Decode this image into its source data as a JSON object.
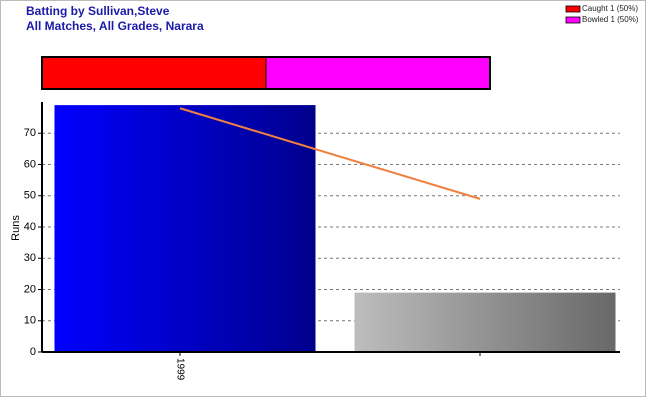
{
  "chart_data": [
    {
      "type": "stacked-hbar",
      "title": "Batting by Sullivan,Steve",
      "subtitle": "All Matches, All Grades, Narara",
      "series": [
        {
          "name": "Caught 1 (50%)",
          "color": "#ff0000",
          "values": [
            50
          ]
        },
        {
          "name": "Bowled 1 (50%)",
          "color": "#ff00ff",
          "values": [
            50
          ]
        }
      ]
    },
    {
      "type": "bar",
      "y_label": "Runs",
      "categories": [
        "1999",
        null
      ],
      "series": [
        {
          "color": "#0000ff",
          "values": [
            79,
            null
          ]
        },
        {
          "color": "#bdbdbd",
          "values": [
            null,
            19
          ]
        },
        {
          "type": "line",
          "color": "#f08040",
          "values": [
            78,
            49
          ]
        }
      ],
      "ylim": [
        0,
        80
      ],
      "yticks": [
        0,
        10,
        20,
        30,
        40,
        50,
        60,
        70
      ],
      "grid": true
    }
  ]
}
